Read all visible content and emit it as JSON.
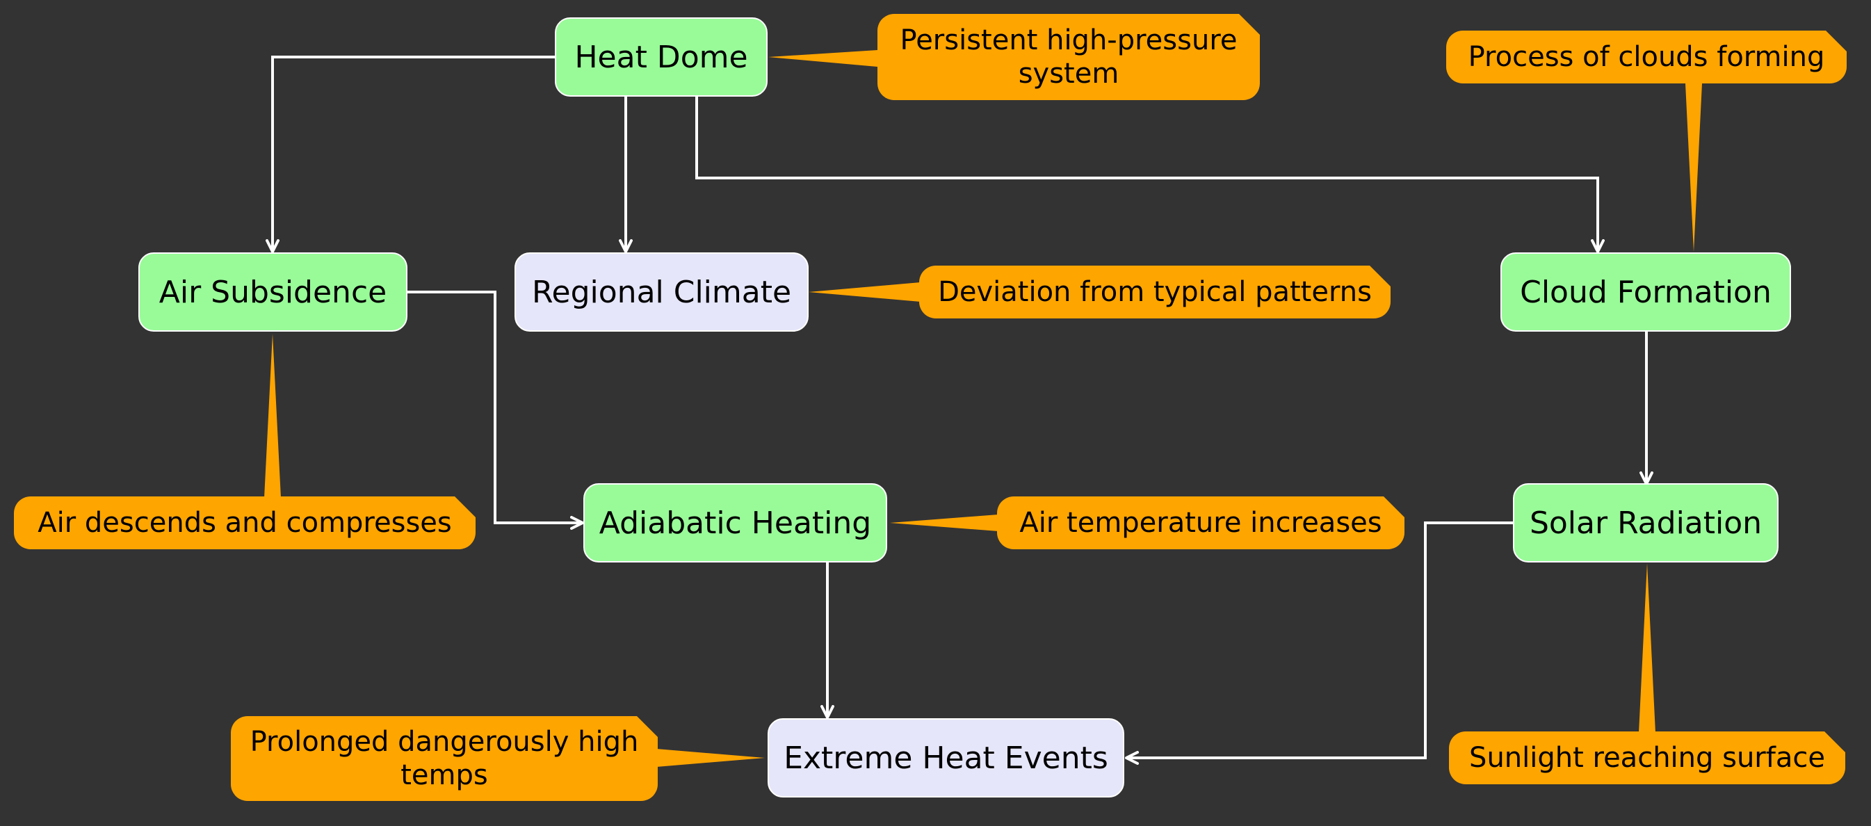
{
  "colors": {
    "background": "#333333",
    "process_node": "#98FB98",
    "outcome_node": "#E6E6FA",
    "note": "#FFA500",
    "edge": "#FFFFFF"
  },
  "nodes": {
    "heat_dome": "Heat Dome",
    "air_subsidence": "Air Subsidence",
    "regional_climate": "Regional Climate",
    "cloud_formation": "Cloud Formation",
    "adiabatic_heating": "Adiabatic Heating",
    "solar_radiation": "Solar Radiation",
    "extreme_heat_events": "Extreme Heat Events"
  },
  "notes": {
    "heat_dome": "Persistent high-pressure system",
    "cloud_formation": "Process of clouds forming",
    "regional_climate": "Deviation from typical patterns",
    "air_subsidence": "Air descends and compresses",
    "adiabatic_heating": "Air temperature increases",
    "extreme_heat_events": "Prolonged dangerously high temps",
    "solar_radiation": "Sunlight reaching surface"
  },
  "edges": [
    {
      "from": "Heat Dome",
      "to": "Air Subsidence"
    },
    {
      "from": "Heat Dome",
      "to": "Regional Climate"
    },
    {
      "from": "Heat Dome",
      "to": "Cloud Formation"
    },
    {
      "from": "Air Subsidence",
      "to": "Adiabatic Heating"
    },
    {
      "from": "Cloud Formation",
      "to": "Solar Radiation"
    },
    {
      "from": "Adiabatic Heating",
      "to": "Extreme Heat Events"
    },
    {
      "from": "Solar Radiation",
      "to": "Extreme Heat Events"
    }
  ]
}
